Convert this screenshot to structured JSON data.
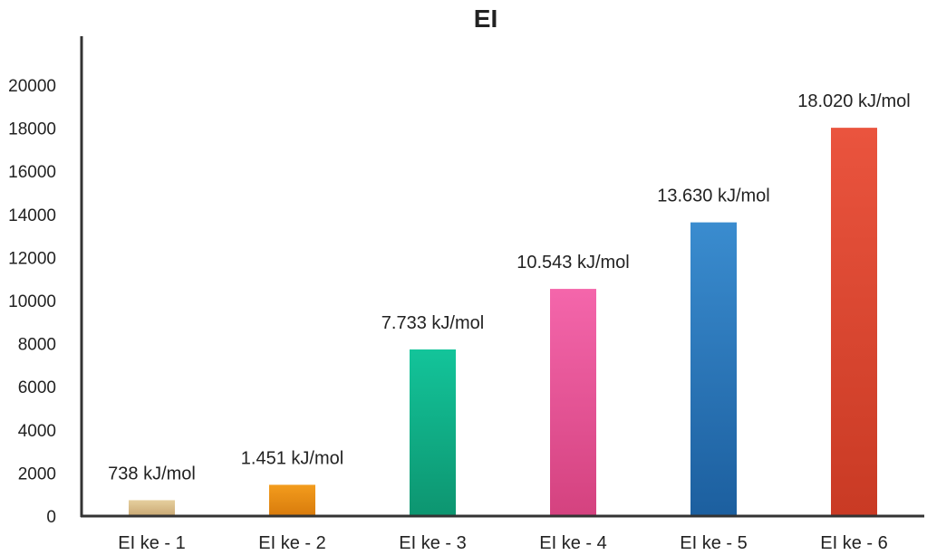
{
  "chart_data": {
    "type": "bar",
    "title": "EI",
    "xlabel": "",
    "ylabel": "",
    "ylim": [
      0,
      20000
    ],
    "yticks": [
      0,
      2000,
      4000,
      6000,
      8000,
      10000,
      12000,
      14000,
      16000,
      18000,
      20000
    ],
    "grid": false,
    "legend": "none",
    "categories": [
      "EI ke - 1",
      "EI ke - 2",
      "EI ke - 3",
      "EI ke - 4",
      "EI ke - 5",
      "EI ke - 6"
    ],
    "values": [
      738,
      1451,
      7733,
      10543,
      13630,
      18020
    ],
    "data_labels": [
      "738 kJ/mol",
      "1.451 kJ/mol",
      "7.733 kJ/mol",
      "10.543 kJ/mol",
      "13.630 kJ/mol",
      "18.020 kJ/mol"
    ],
    "colors": [
      [
        "#e6cf9e",
        "#c9a873"
      ],
      [
        "#f39c1d",
        "#d87b0c"
      ],
      [
        "#13c49a",
        "#0d9570"
      ],
      [
        "#f466ab",
        "#d4427f"
      ],
      [
        "#3a8ccf",
        "#1c5f9f"
      ],
      [
        "#ea543e",
        "#c93a24"
      ]
    ],
    "axis_color": "#333333"
  }
}
